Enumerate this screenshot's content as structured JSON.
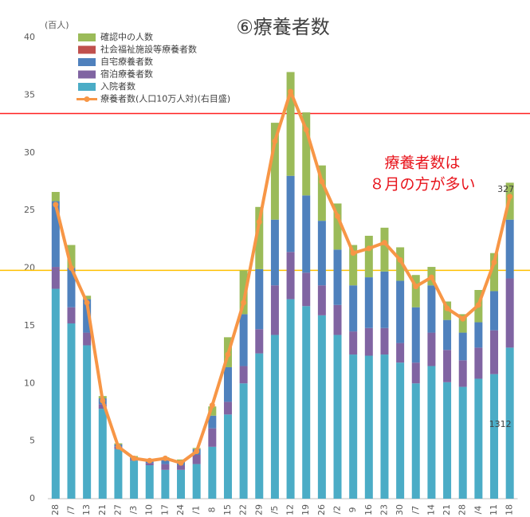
{
  "chart_data": {
    "type": "stacked_bar_line",
    "title": "⑥療養者数",
    "y_label": "(百人)",
    "categories": [
      "28",
      "/7",
      "13",
      "21",
      "27",
      "/3",
      "10",
      "17",
      "24",
      "/1",
      "8",
      "15",
      "22",
      "29",
      "/5",
      "12",
      "19",
      "26",
      "/2",
      "9",
      "16",
      "23",
      "30",
      "/7",
      "14",
      "21",
      "28",
      "/4",
      "11",
      "18"
    ],
    "series": [
      {
        "name": "入院者数",
        "color": "#4bacc6",
        "values": [
          18.2,
          15.2,
          13.3,
          7.8,
          4.3,
          3.3,
          2.9,
          2.5,
          2.5,
          3.0,
          4.5,
          7.3,
          10.0,
          12.6,
          14.2,
          17.3,
          16.7,
          15.9,
          14.2,
          12.5,
          12.4,
          12.5,
          11.8,
          10.0,
          11.5,
          10.1,
          9.7,
          10.4,
          10.8,
          13.1
        ]
      },
      {
        "name": "宿泊療養者数",
        "color": "#8064a2",
        "values": [
          1.9,
          1.4,
          1.1,
          0.4,
          0.2,
          0.1,
          0.2,
          0.5,
          0.4,
          0.8,
          1.6,
          1.1,
          1.5,
          2.1,
          4.3,
          4.1,
          2.9,
          2.6,
          2.6,
          2.0,
          2.4,
          2.3,
          1.7,
          1.8,
          2.9,
          2.8,
          2.3,
          2.7,
          3.8,
          6.0
        ]
      },
      {
        "name": "自宅療養者数",
        "color": "#4f81bd",
        "values": [
          5.7,
          3.4,
          2.9,
          0.5,
          0.2,
          0.2,
          0.2,
          0.4,
          0.3,
          0.5,
          1.1,
          3.0,
          4.5,
          5.2,
          5.7,
          6.6,
          6.7,
          5.6,
          4.8,
          4.0,
          4.4,
          4.9,
          5.4,
          4.8,
          4.1,
          2.6,
          2.4,
          2.2,
          3.4,
          5.1
        ]
      },
      {
        "name": "社会福祉施設等療養者数",
        "color": "#c0504d",
        "values": [
          0,
          0,
          0,
          0,
          0,
          0,
          0,
          0,
          0,
          0,
          0,
          0,
          0,
          0,
          0,
          0,
          0,
          0,
          0,
          0,
          0,
          0,
          0,
          0,
          0,
          0,
          0,
          0,
          0,
          0
        ]
      },
      {
        "name": "確認中の人数",
        "color": "#9bbb59",
        "values": [
          0.8,
          2.0,
          0.3,
          0.2,
          0.1,
          0.1,
          0.1,
          0.2,
          0.2,
          0.1,
          0.8,
          2.6,
          3.8,
          5.4,
          8.4,
          9.0,
          7.2,
          4.8,
          4.0,
          3.5,
          3.6,
          3.8,
          2.9,
          2.8,
          1.6,
          1.6,
          1.6,
          2.8,
          3.3,
          3.2
        ]
      }
    ],
    "line": {
      "name": "療養者数(人口10万人対)(右目盛)",
      "color": "#f79646",
      "axis": "y2",
      "values": [
        25.5,
        20,
        17,
        8.5,
        4.5,
        3.5,
        3.3,
        3.5,
        3.1,
        4.1,
        8.1,
        12.5,
        17,
        24,
        31,
        35.3,
        32,
        27.5,
        24.5,
        21.3,
        21.7,
        22.2,
        20.7,
        18.4,
        19.2,
        16.5,
        15.6,
        16.8,
        20.5,
        26.2
      ]
    },
    "ylim": [
      0,
      40
    ],
    "yticks": [
      0,
      5,
      10,
      15,
      20,
      25,
      30,
      35,
      40
    ],
    "y2lim": [
      0,
      40
    ],
    "reference_lines": [
      {
        "value": 33.4,
        "color": "#ff2020"
      },
      {
        "value": 19.8,
        "color": "#ffc000"
      }
    ],
    "annotations": [
      "療養者数は",
      "８月の方が多い",
      "327",
      "1312"
    ]
  }
}
